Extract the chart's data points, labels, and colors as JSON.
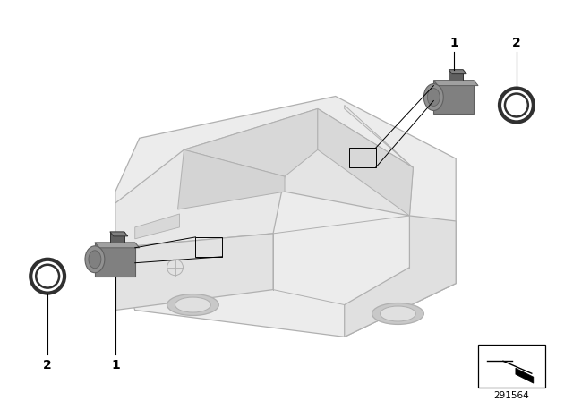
{
  "background_color": "#ffffff",
  "part_number": "291564",
  "labels": {
    "top_right_1": "1",
    "top_right_2": "2",
    "bottom_left_1": "1",
    "bottom_left_2": "2"
  },
  "car_line_color": "#b0b0b0",
  "sensor_body_color": "#808080",
  "sensor_dark_color": "#606060",
  "sensor_light_color": "#a0a0a0",
  "line_color": "#000000"
}
